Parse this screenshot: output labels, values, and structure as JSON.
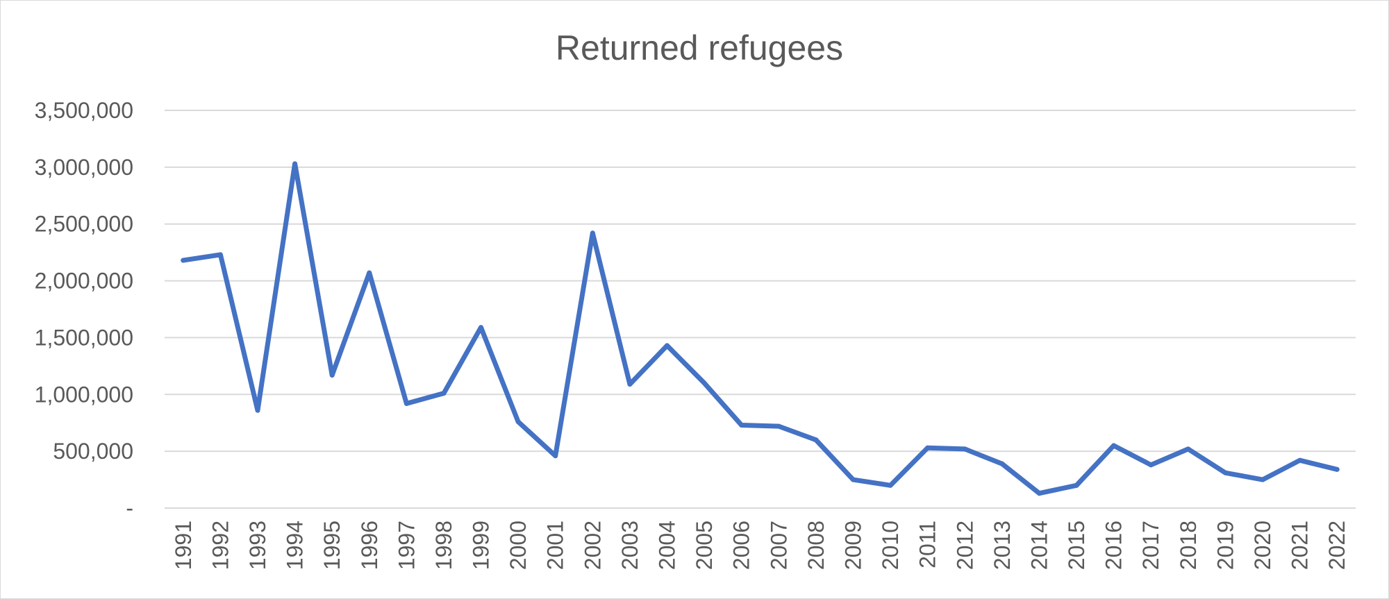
{
  "colors": {
    "series": "#4472c4",
    "grid": "#d9d9d9",
    "text": "#595959",
    "background": "#ffffff"
  },
  "chart_data": {
    "type": "line",
    "title": "Returned refugees",
    "xlabel": "",
    "ylabel": "",
    "legend": "none",
    "grid": true,
    "ylim": [
      0,
      3500000
    ],
    "yticks": [
      0,
      500000,
      1000000,
      1500000,
      2000000,
      2500000,
      3000000,
      3500000
    ],
    "ytick_labels": [
      "-",
      "500,000",
      "1,000,000",
      "1,500,000",
      "2,000,000",
      "2,500,000",
      "3,000,000",
      "3,500,000"
    ],
    "categories": [
      "1991",
      "1992",
      "1993",
      "1994",
      "1995",
      "1996",
      "1997",
      "1998",
      "1999",
      "2000",
      "2001",
      "2002",
      "2003",
      "2004",
      "2005",
      "2006",
      "2007",
      "2008",
      "2009",
      "2010",
      "2011",
      "2012",
      "2013",
      "2014",
      "2015",
      "2016",
      "2017",
      "2018",
      "2019",
      "2020",
      "2021",
      "2022"
    ],
    "series": [
      {
        "values": [
          2180000,
          2230000,
          860000,
          3030000,
          1170000,
          2070000,
          920000,
          1010000,
          1590000,
          760000,
          460000,
          2420000,
          1090000,
          1430000,
          1100000,
          730000,
          720000,
          600000,
          250000,
          200000,
          530000,
          520000,
          390000,
          130000,
          200000,
          550000,
          380000,
          520000,
          310000,
          250000,
          420000,
          340000
        ]
      }
    ]
  }
}
